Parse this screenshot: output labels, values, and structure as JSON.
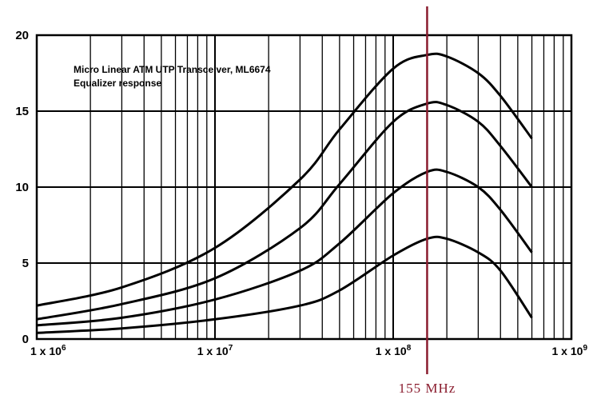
{
  "chart_data": {
    "type": "line",
    "title": "Micro Linear ATM UTP Transceiver, ML6674",
    "subtitle": "Equalizer response",
    "xlabel": "",
    "ylabel": "",
    "x_scale": "log",
    "xlim": [
      1000000,
      1000000000
    ],
    "ylim": [
      0,
      20
    ],
    "x_ticks": [
      {
        "value": 1000000,
        "base": "1 x 10",
        "exp": "6"
      },
      {
        "value": 10000000,
        "base": "1 x 10",
        "exp": "7"
      },
      {
        "value": 100000000,
        "base": "1 x 10",
        "exp": "8"
      },
      {
        "value": 1000000000,
        "base": "1 x 10",
        "exp": "9"
      }
    ],
    "y_ticks": [
      "0",
      "5",
      "10",
      "15",
      "20"
    ],
    "grid": true,
    "x": [
      1000000,
      3000000,
      10000000,
      30000000,
      50000000,
      100000000,
      155000000,
      200000000,
      300000000,
      400000000,
      600000000
    ],
    "series": [
      {
        "values": [
          2.2,
          3.4,
          6.0,
          10.5,
          13.8,
          17.8,
          18.7,
          18.6,
          17.5,
          16.0,
          13.2
        ]
      },
      {
        "values": [
          1.3,
          2.3,
          4.0,
          7.3,
          10.2,
          14.3,
          15.5,
          15.4,
          14.3,
          12.7,
          10.0
        ]
      },
      {
        "values": [
          0.9,
          1.4,
          2.6,
          4.5,
          6.3,
          9.6,
          11.0,
          11.0,
          10.0,
          8.5,
          5.7
        ]
      },
      {
        "values": [
          0.4,
          0.7,
          1.3,
          2.2,
          3.2,
          5.5,
          6.6,
          6.6,
          5.7,
          4.5,
          1.4
        ]
      }
    ],
    "marker": {
      "x": 155000000,
      "label": "155 MHz",
      "color": "#8a1c2e"
    },
    "line_color": "#000000"
  }
}
